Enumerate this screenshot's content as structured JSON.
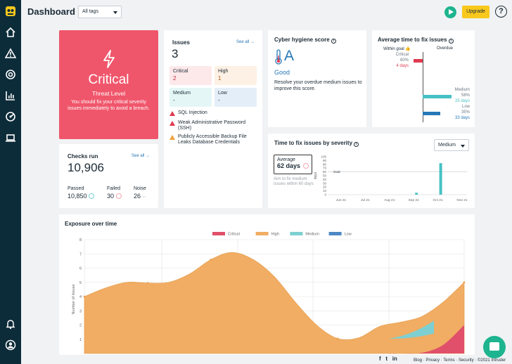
{
  "header": {
    "title": "Dashboard",
    "tags_select": "All tags",
    "upgrade_label": "Upgrade",
    "help_label": "?"
  },
  "sidebar": {
    "items": [
      {
        "icon": "home-icon"
      },
      {
        "icon": "warning-icon"
      },
      {
        "icon": "target-icon"
      },
      {
        "icon": "chart-icon"
      },
      {
        "icon": "radar-icon"
      },
      {
        "icon": "laptop-icon"
      },
      {
        "icon": "bell-icon"
      },
      {
        "icon": "user-icon"
      }
    ]
  },
  "threat": {
    "level": "Critical",
    "label": "Threat Level",
    "description": "You should fix your critical severity issues immediately to avoid a breach."
  },
  "issues": {
    "title": "Issues",
    "see_all": "See all",
    "count": "3",
    "severities": [
      {
        "label": "Critical",
        "value": "2",
        "color": "#fde8ea",
        "text_color": "#c5293f"
      },
      {
        "label": "High",
        "value": "1",
        "color": "#fdf0e4",
        "text_color": "#b55a12"
      },
      {
        "label": "Medium",
        "value": "-",
        "color": "#e4f6f6",
        "text_color": "#1c2b36"
      },
      {
        "label": "Low",
        "value": "-",
        "color": "#e4eef8",
        "text_color": "#1c2b36"
      }
    ],
    "list": [
      {
        "text": "SQL Injection",
        "color": "#e03a4f"
      },
      {
        "text": "Weak Administrative Password (SSH)",
        "color": "#e03a4f"
      },
      {
        "text": "Publicly Accessible Backup File Leaks Database Credentials",
        "color": "#f0a13c"
      }
    ]
  },
  "checks": {
    "title": "Checks run",
    "see_all": "See all",
    "count": "10,906",
    "passed_label": "Passed",
    "passed_value": "10,850",
    "failed_label": "Failed",
    "failed_value": "30",
    "noise_label": "Noise",
    "noise_value": "26"
  },
  "hygiene": {
    "title": "Cyber hygiene score",
    "grade": "A",
    "rating": "Good",
    "note": "Resolve your overdue medium issues to improve this score."
  },
  "avg_fix": {
    "title": "Average time to fix issues",
    "within_goal": "Within goal",
    "overdue": "Overdue",
    "rows": [
      {
        "label": "Critical",
        "pct": "60%",
        "days": "4 days",
        "color": "#e03a4f",
        "value": 0.6,
        "overdue": false
      },
      {
        "label": "Medium",
        "pct": "58%",
        "days": "25 days",
        "color": "#46c1c3",
        "value": 0.58,
        "overdue": true
      },
      {
        "label": "Low",
        "pct": "35%",
        "days": "33 days",
        "color": "#2679b8",
        "value": 0.35,
        "overdue": true
      }
    ]
  },
  "time_to_fix": {
    "title": "Time to fix issues by severity",
    "severity_select": "Medium",
    "average_label": "Average",
    "average_value": "62 days",
    "note": "Aim to fix medium issues within 60 days"
  },
  "exposure": {
    "title": "Exposure over time"
  },
  "chart_data": [
    {
      "type": "bar",
      "title": "",
      "ylabel": "days",
      "xlabel": "",
      "ylim": [
        0,
        100
      ],
      "yticks": [
        0,
        10,
        20,
        30,
        40,
        50,
        60,
        70,
        80,
        90,
        100
      ],
      "goal_label": "Goal",
      "goal_value": 60,
      "tick_labels": [
        "Jun 21",
        "Jul 21",
        "Aug 21",
        "Sep 21",
        "Oct 21",
        "Nov 21"
      ],
      "categories": [
        "Sep 21",
        "Oct 21"
      ],
      "values": [
        5,
        83
      ],
      "color": "#46c1c3"
    },
    {
      "type": "area",
      "title": "",
      "ylabel": "Number of Issues",
      "ylim": [
        0,
        8
      ],
      "yticks": [
        1,
        2,
        3,
        4,
        5,
        6,
        7,
        8
      ],
      "legend_placement": "top",
      "series": [
        {
          "name": "Critical",
          "color": "#e0506a",
          "values": [
            0,
            0,
            0,
            0,
            0,
            0,
            0,
            0,
            0,
            0,
            0,
            0,
            0,
            0,
            0,
            0,
            0.05,
            0.6,
            2.0
          ]
        },
        {
          "name": "High",
          "color": "#f0ad63",
          "values": [
            4,
            4.6,
            5,
            4.95,
            5,
            5.6,
            6.6,
            7.1,
            6.6,
            5.4,
            3.6,
            2.0,
            1.05,
            1.1,
            1.9,
            2.2,
            2.6,
            3.6,
            5.0
          ]
        },
        {
          "name": "Medium",
          "color": "#7ecfd1",
          "values": [
            0,
            0,
            0,
            0,
            0,
            0,
            0,
            0,
            0,
            0,
            0,
            0,
            0,
            0,
            0,
            0,
            0,
            0,
            0
          ]
        },
        {
          "name": "Low",
          "color": "#4d88c4",
          "values": [
            0,
            0,
            0,
            0,
            0,
            0,
            0,
            0,
            0,
            0,
            0,
            0,
            0,
            0,
            0,
            0,
            0,
            0,
            0
          ]
        }
      ]
    }
  ],
  "footer": {
    "links": [
      "Blog",
      "Privacy",
      "Terms",
      "Security"
    ],
    "copyright": "©2021 Intruder"
  }
}
